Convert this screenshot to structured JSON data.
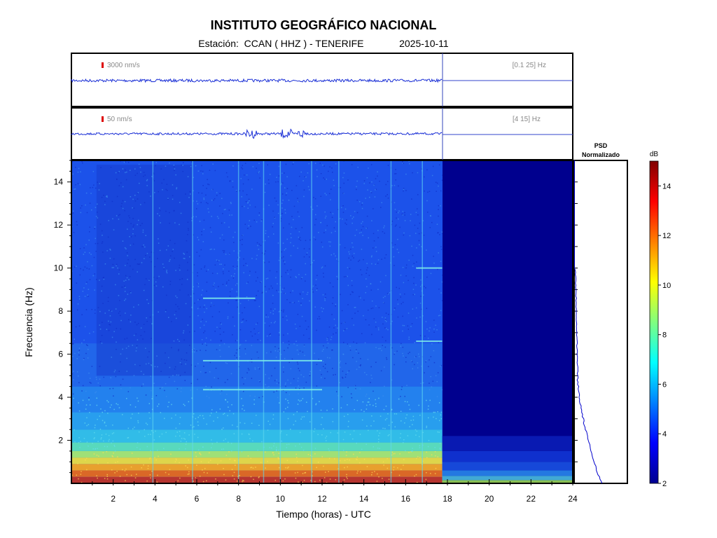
{
  "header": {
    "title": "INSTITUTO GEOGRÁFICO NACIONAL",
    "station_label": "Estación:",
    "station": "CCAN ( HHZ ) - TENERIFE",
    "date": "2025-10-11"
  },
  "chart_data": [
    {
      "type": "line",
      "name": "waveform-broadband",
      "scale_label": "3000 nm/s",
      "band_label": "[0.1 25] Hz",
      "xlim": [
        0,
        24
      ],
      "data_end_hour": 17.75,
      "amplitude_bursts": []
    },
    {
      "type": "line",
      "name": "waveform-filtered",
      "scale_label": "50 nm/s",
      "band_label": "[4 15] Hz",
      "xlim": [
        0,
        24
      ],
      "data_end_hour": 17.75,
      "amplitude_bursts": [
        8.6,
        10.3,
        11.1
      ]
    },
    {
      "type": "heatmap",
      "xlabel": "Tiempo (horas) - UTC",
      "ylabel": "Frecuencia  (Hz)",
      "xlim": [
        0,
        24
      ],
      "ylim": [
        0,
        15
      ],
      "x_ticks": [
        2,
        4,
        6,
        8,
        10,
        12,
        14,
        16,
        18,
        20,
        22,
        24
      ],
      "y_ticks": [
        2,
        4,
        6,
        8,
        10,
        12,
        14
      ],
      "data_end_hour": 17.75,
      "tonal_lines": [
        {
          "freq": 5.7,
          "start": 6.3,
          "end": 12.0
        },
        {
          "freq": 4.35,
          "start": 6.3,
          "end": 12.0
        },
        {
          "freq": 8.6,
          "start": 6.3,
          "end": 8.8
        },
        {
          "freq": 10.0,
          "start": 16.5,
          "end": 17.75
        },
        {
          "freq": 6.6,
          "start": 16.5,
          "end": 17.75
        }
      ],
      "transients": [
        3.9,
        5.8,
        8.0,
        9.2,
        10.0,
        11.5,
        12.8,
        15.3,
        16.8
      ]
    },
    {
      "type": "line",
      "name": "psd",
      "title": "PSD\nNormalizado",
      "ylim": [
        0,
        15
      ]
    }
  ],
  "colorbar": {
    "unit": "dB",
    "range": [
      2,
      15
    ],
    "ticks": [
      2,
      4,
      6,
      8,
      10,
      12,
      14
    ],
    "colormap": "jet"
  }
}
